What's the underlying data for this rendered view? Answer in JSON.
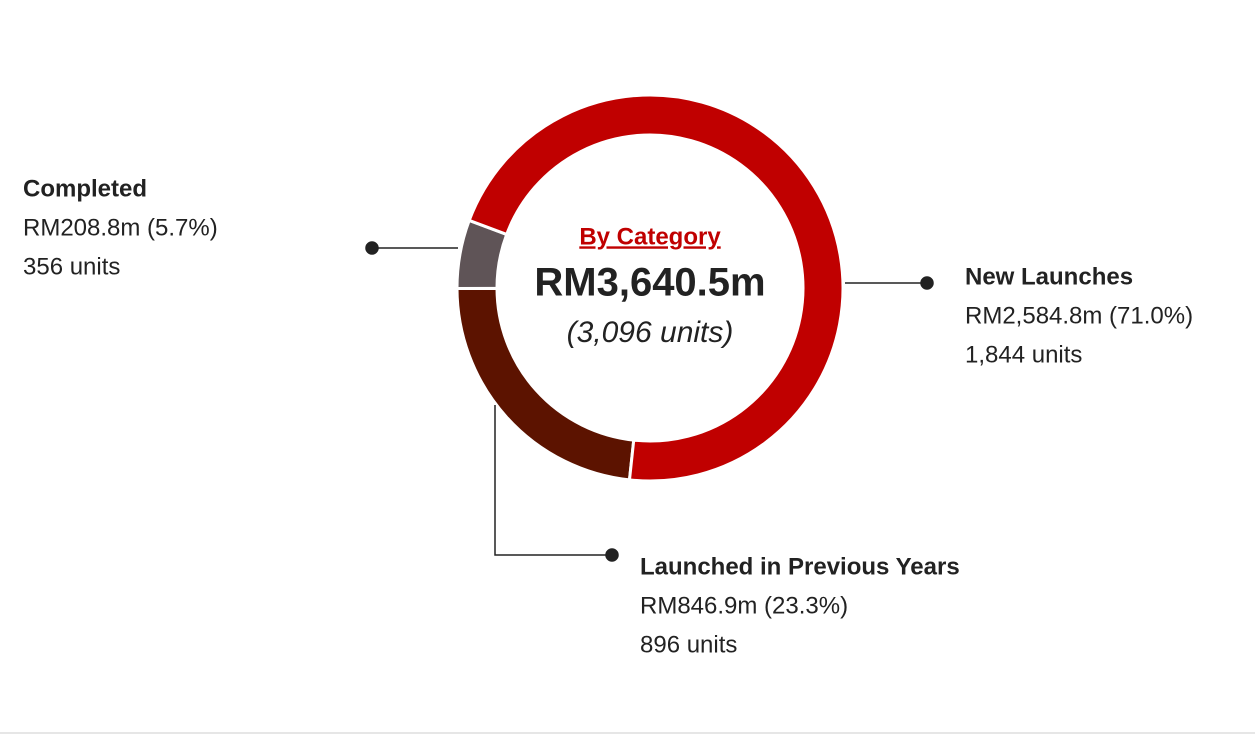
{
  "chart_data": {
    "type": "donut",
    "title": "By Category",
    "total_label": "RM3,640.5m",
    "total_units_label": "(3,096 units)",
    "categories": [
      "New Launches",
      "Launched in Previous Years",
      "Completed"
    ],
    "values": [
      2584.8,
      846.9,
      208.8
    ],
    "value_labels": [
      "RM2,584.8m (71.0%)",
      "RM846.9m (23.3%)",
      "RM208.8m (5.7%)"
    ],
    "unit_labels": [
      "1,844 units",
      "896 units",
      "356 units"
    ],
    "colors": [
      "#c00000",
      "#5c1300",
      "#5f5457"
    ]
  }
}
